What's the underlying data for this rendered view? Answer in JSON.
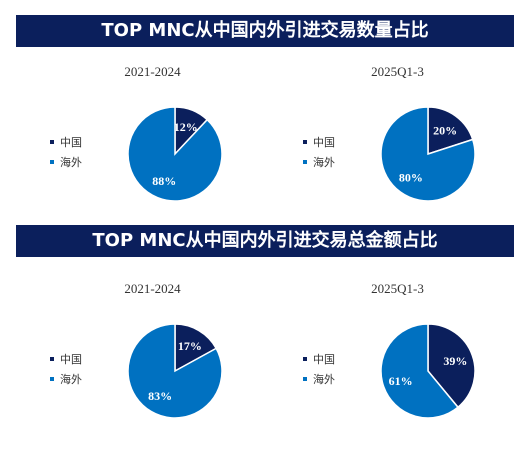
{
  "banners": {
    "top": "TOP MNC从中国内外引进交易数量占比",
    "bottom": "TOP MNC从中国内外引进交易总金额占比"
  },
  "legend_labels": [
    "中国",
    "海外"
  ],
  "colors": {
    "banner_bg": "#0b1f5c",
    "china": "#0b1f5c",
    "overseas": "#0071c1"
  },
  "chart_data": [
    {
      "type": "pie",
      "title": "2021-2024",
      "group": "交易数量",
      "categories": [
        "中国",
        "海外"
      ],
      "values": [
        12,
        88
      ],
      "labels": [
        "12%",
        "88%"
      ]
    },
    {
      "type": "pie",
      "title": "2025Q1-3",
      "group": "交易数量",
      "categories": [
        "中国",
        "海外"
      ],
      "values": [
        20,
        80
      ],
      "labels": [
        "20%",
        "80%"
      ]
    },
    {
      "type": "pie",
      "title": "2021-2024",
      "group": "交易总金额",
      "categories": [
        "中国",
        "海外"
      ],
      "values": [
        17,
        83
      ],
      "labels": [
        "17%",
        "83%"
      ]
    },
    {
      "type": "pie",
      "title": "2025Q1-3",
      "group": "交易总金额",
      "categories": [
        "中国",
        "海外"
      ],
      "values": [
        39,
        61
      ],
      "labels": [
        "39%",
        "61%"
      ]
    }
  ]
}
